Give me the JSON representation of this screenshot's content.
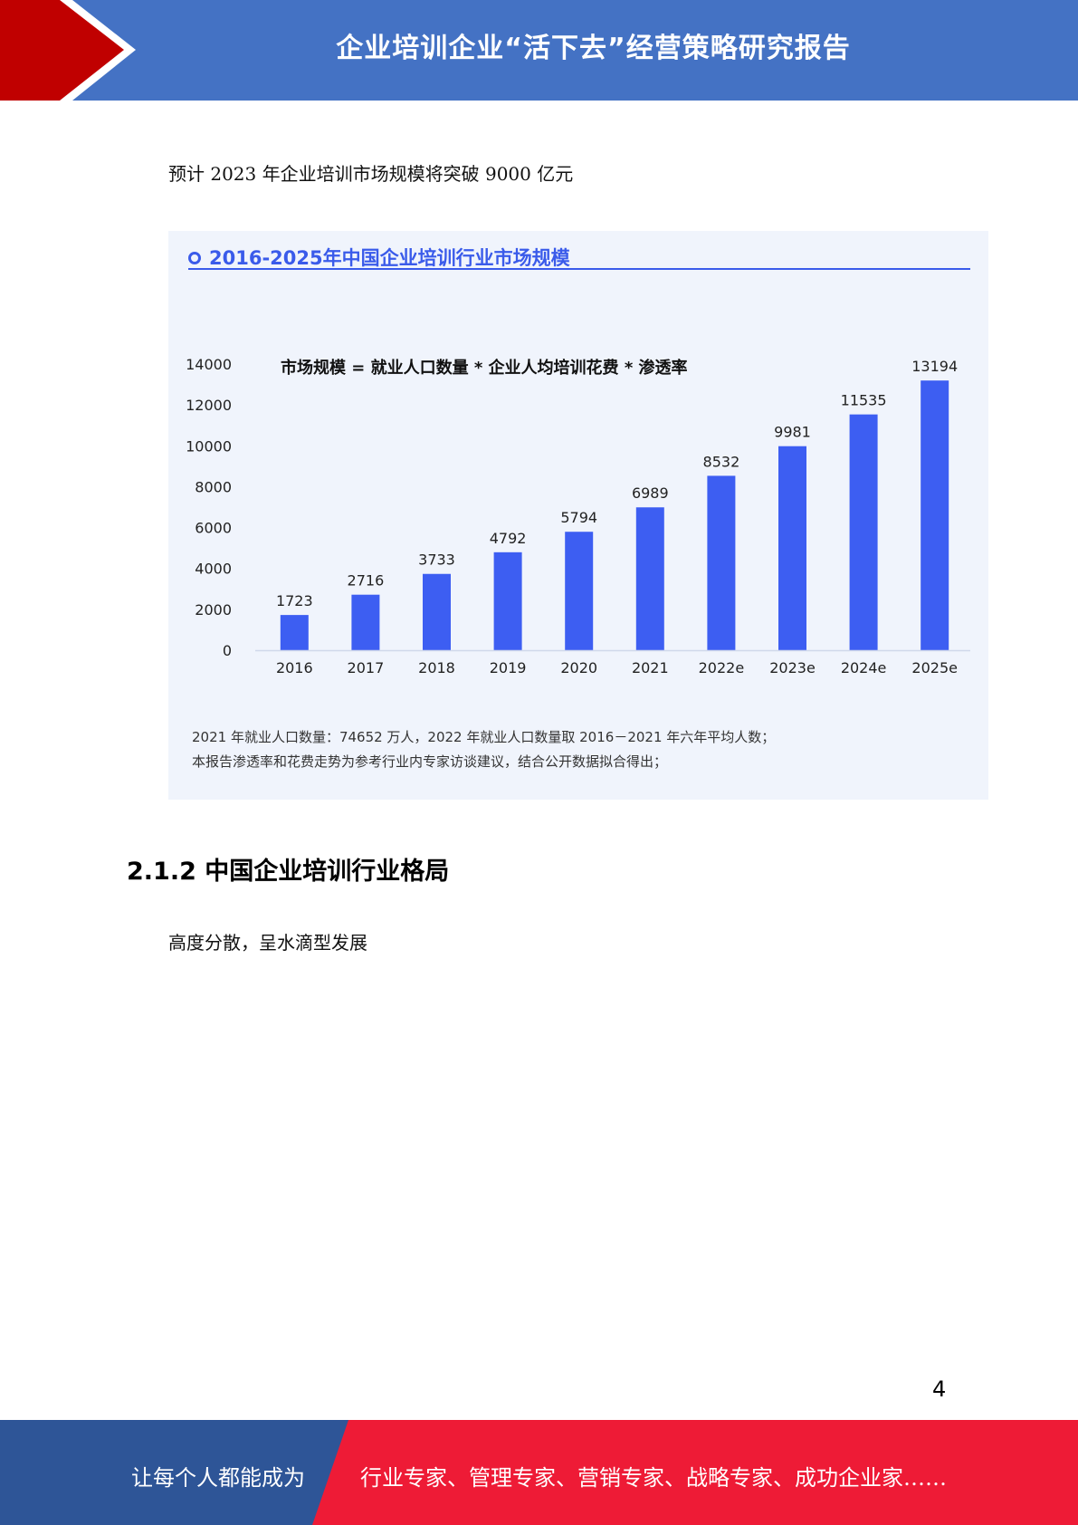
{
  "header": {
    "title": "企业培训企业“活下去”经营策略研究报告"
  },
  "intro_text": "预计 2023 年企业培训市场规模将突破 9000 亿元",
  "chart_data": {
    "type": "bar",
    "title": "2016-2025年中国企业培训行业市场规模",
    "subtitle": "市场规模 = 就业人口数量 * 企业人均培训花费 * 渗透率",
    "categories": [
      "2016",
      "2017",
      "2018",
      "2019",
      "2020",
      "2021",
      "2022e",
      "2023e",
      "2024e",
      "2025e"
    ],
    "values": [
      1723,
      2716,
      3733,
      4792,
      5794,
      6989,
      8532,
      9981,
      11535,
      13194
    ],
    "ylim": [
      0,
      14000
    ],
    "yticks": [
      0,
      2000,
      4000,
      6000,
      8000,
      10000,
      12000,
      14000
    ],
    "xlabel": "",
    "ylabel": "",
    "grid": false,
    "bar_color": "#3d5ef2",
    "notes": [
      "2021 年就业人口数量：74652 万人，2022 年就业人口数量取 2016－2021 年六年平均人数；",
      "本报告渗透率和花费走势为参考行业内专家访谈建议，结合公开数据拟合得出；"
    ]
  },
  "section": {
    "heading": "2.1.2 中国企业培训行业格局",
    "text": "高度分散，呈水滴型发展"
  },
  "page_number": "4",
  "footer": {
    "left_text": "让每个人都能成为",
    "right_text": "行业专家、管理专家、营销专家、战略专家、成功企业家……"
  },
  "colors": {
    "header_blue": "#4472c4",
    "header_red": "#c00000",
    "chart_blue": "#3a5bea",
    "footer_blue": "#2e5597",
    "footer_red": "#ee1b36"
  }
}
